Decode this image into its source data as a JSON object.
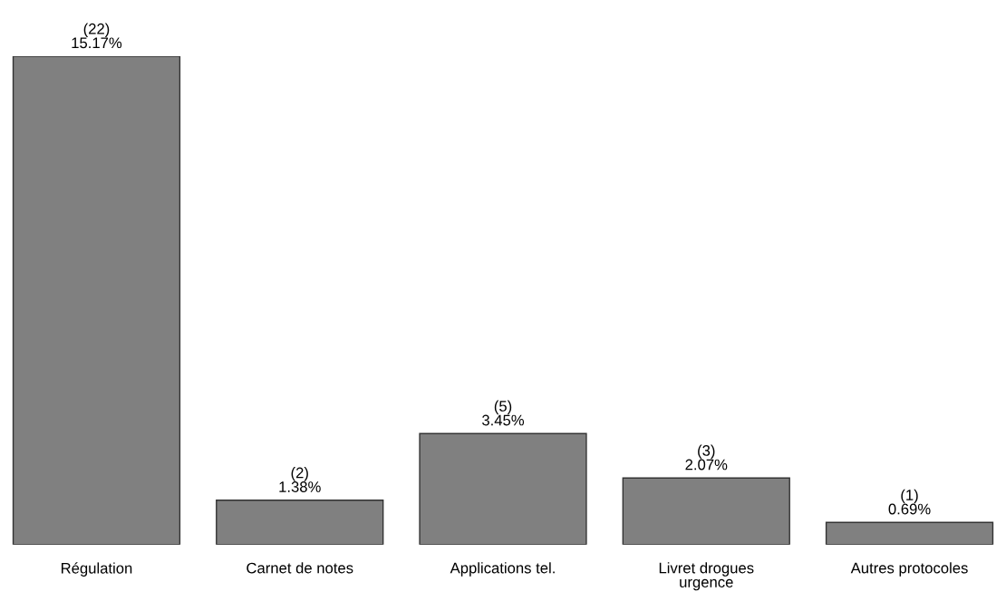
{
  "chart_data": {
    "type": "bar",
    "categories": [
      "Régulation",
      "Carnet de notes",
      "Applications tel.",
      "Livret drogues\nurgence",
      "Autres protocoles"
    ],
    "values": [
      15.17,
      1.38,
      3.45,
      2.07,
      0.69
    ],
    "value_labels": [
      "(22)\n15.17%",
      "(2)\n1.38%",
      "(5)\n3.45%",
      "(3)\n2.07%",
      "(1)\n0.69%"
    ],
    "color": "#808080",
    "grid": false,
    "legend": false
  }
}
